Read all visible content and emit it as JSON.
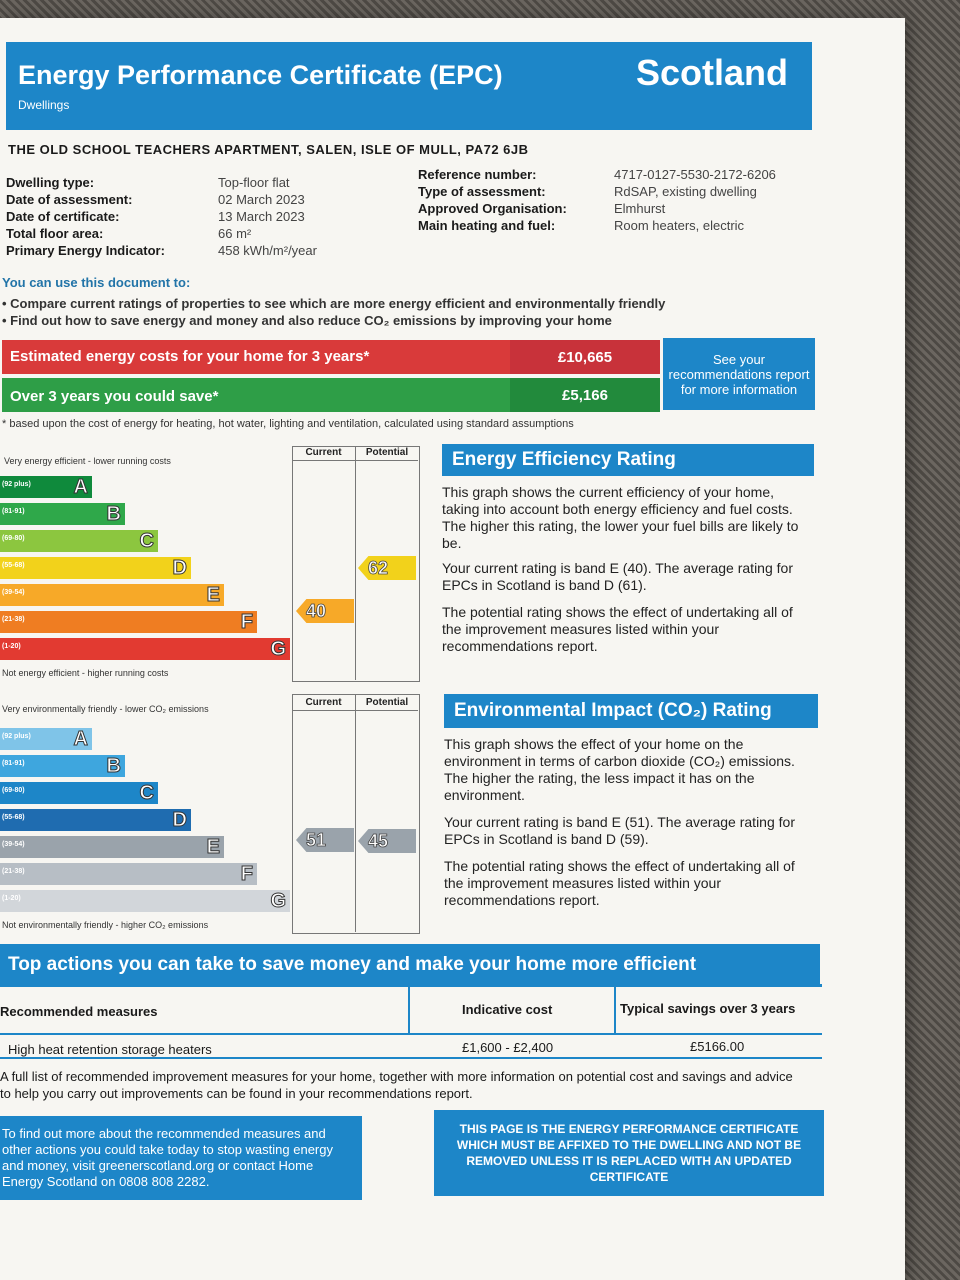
{
  "header": {
    "title": "Energy Performance Certificate (EPC)",
    "subtitle": "Dwellings",
    "region": "Scotland"
  },
  "address": "THE OLD SCHOOL TEACHERS APARTMENT, SALEN, ISLE OF MULL, PA72 6JB",
  "details_left": [
    {
      "label": "Dwelling type:",
      "value": "Top-floor flat"
    },
    {
      "label": "Date of assessment:",
      "value": "02 March 2023"
    },
    {
      "label": "Date of certificate:",
      "value": "13 March 2023"
    },
    {
      "label": "Total floor area:",
      "value": "66 m²"
    },
    {
      "label": "Primary Energy Indicator:",
      "value": "458 kWh/m²/year"
    }
  ],
  "details_right": [
    {
      "label": "Reference number:",
      "value": "4717-0127-5530-2172-6206"
    },
    {
      "label": "Type of assessment:",
      "value": "RdSAP, existing dwelling"
    },
    {
      "label": "Approved Organisation:",
      "value": "Elmhurst"
    },
    {
      "label": "Main heating and fuel:",
      "value": "Room heaters, electric"
    }
  ],
  "usage": {
    "heading": "You can use this document to:",
    "bullets": [
      "Compare current ratings of properties to see which are more energy efficient and environmentally friendly",
      "Find out how to save energy and money and also reduce CO₂ emissions by improving your home"
    ]
  },
  "costs": {
    "estimated_label": "Estimated energy costs for your home for 3 years*",
    "estimated_value": "£10,665",
    "save_label": "Over 3 years you could save*",
    "save_value": "£5,166",
    "see_text": "See your recommendations report for more information",
    "footnote": "* based upon the cost of energy for heating, hot water, lighting and ventilation, calculated using standard assumptions"
  },
  "efficiency": {
    "top_note": "Very energy efficient - lower running costs",
    "bottom_note": "Not energy efficient - higher running costs",
    "col_current": "Current",
    "col_potential": "Potential",
    "bands": [
      {
        "range": "(92 plus)",
        "letter": "A",
        "color": "#0f8a3c"
      },
      {
        "range": "(81-91)",
        "letter": "B",
        "color": "#2fa84a"
      },
      {
        "range": "(69-80)",
        "letter": "C",
        "color": "#8cc63f"
      },
      {
        "range": "(55-68)",
        "letter": "D",
        "color": "#f2d21b"
      },
      {
        "range": "(39-54)",
        "letter": "E",
        "color": "#f7a928"
      },
      {
        "range": "(21-38)",
        "letter": "F",
        "color": "#ef7d22"
      },
      {
        "range": "(1-20)",
        "letter": "G",
        "color": "#e23a31"
      }
    ],
    "current": "40",
    "potential": "62",
    "current_color": "#f7a928",
    "potential_color": "#f2d21b",
    "heading": "Energy Efficiency Rating",
    "para1": "This graph shows the current efficiency of your home, taking into account both energy efficiency and fuel costs. The higher this rating, the lower your fuel bills are likely to be.",
    "para2": "Your current rating is band E (40). The average rating for EPCs in Scotland is band D (61).",
    "para3": "The potential rating shows the effect of undertaking all of the improvement measures listed within your recommendations report."
  },
  "environment": {
    "top_note": "Very environmentally friendly - lower CO₂ emissions",
    "bottom_note": "Not environmentally friendly - higher CO₂ emissions",
    "col_current": "Current",
    "col_potential": "Potential",
    "bands": [
      {
        "range": "(92 plus)",
        "letter": "A",
        "color": "#7fc4e8"
      },
      {
        "range": "(81-91)",
        "letter": "B",
        "color": "#3ea6de"
      },
      {
        "range": "(69-80)",
        "letter": "C",
        "color": "#1d86c8"
      },
      {
        "range": "(55-68)",
        "letter": "D",
        "color": "#1f6cb0"
      },
      {
        "range": "(39-54)",
        "letter": "E",
        "color": "#9aa3ab"
      },
      {
        "range": "(21-38)",
        "letter": "F",
        "color": "#b7bec5"
      },
      {
        "range": "(1-20)",
        "letter": "G",
        "color": "#d2d6da"
      }
    ],
    "current": "51",
    "potential": "45",
    "current_color": "#9aa3ab",
    "potential_color": "#9aa3ab",
    "heading": "Environmental Impact (CO₂) Rating",
    "para1": "This graph shows the effect of your home on the environment in terms of carbon dioxide (CO₂) emissions. The higher the rating, the less impact it has on the environment.",
    "para2": "Your current rating is band E (51). The average rating for EPCs in Scotland is band D (59).",
    "para3": "The potential rating shows the effect of undertaking all of the improvement measures listed within your recommendations report."
  },
  "actions": {
    "heading": "Top actions you can take to save money and make your home more efficient",
    "col1": "Recommended measures",
    "col2": "Indicative cost",
    "col3": "Typical savings over 3 years",
    "rows": [
      {
        "measure": "High heat retention storage heaters",
        "cost": "£1,600 - £2,400",
        "saving": "£5166.00"
      }
    ],
    "full_list": "A full list of recommended improvement measures for your home, together with more information on potential cost and savings and advice to help you carry out improvements can be found in your recommendations report."
  },
  "info_box": "To find out more about the recommended measures and other actions you could take today to stop wasting energy and money, visit greenerscotland.org or contact Home Energy Scotland on 0808 808 2282.",
  "notice_box": "THIS PAGE IS THE ENERGY PERFORMANCE CERTIFICATE WHICH MUST BE AFFIXED TO THE DWELLING AND NOT BE REMOVED UNLESS IT IS REPLACED WITH AN UPDATED CERTIFICATE"
}
